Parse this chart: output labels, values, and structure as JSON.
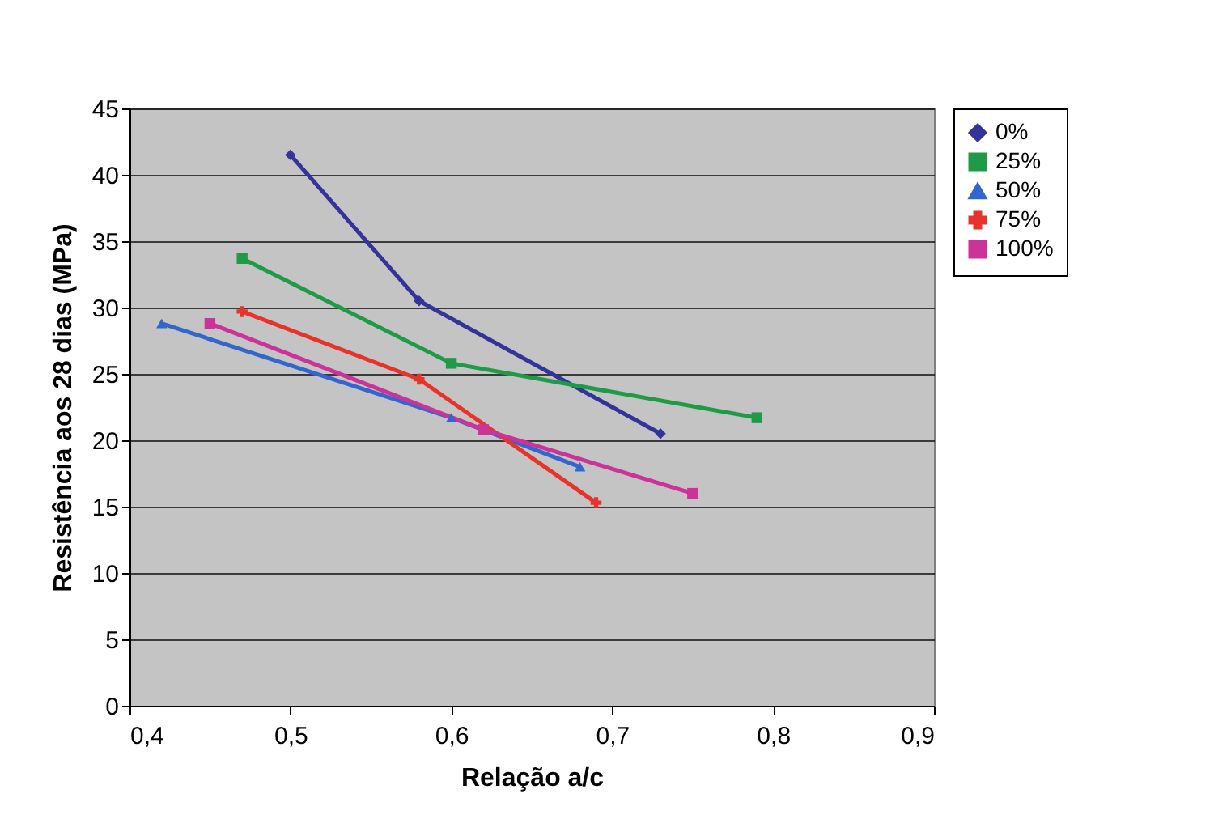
{
  "chart_data": {
    "type": "line",
    "xlabel": "Relação a/c",
    "ylabel": "Resistência aos 28 dias (MPa)",
    "xlim": [
      0.4,
      0.9
    ],
    "xticks": [
      {
        "value": 0.4,
        "label": "0,4"
      },
      {
        "value": 0.5,
        "label": "0,5"
      },
      {
        "value": 0.6,
        "label": "0,6"
      },
      {
        "value": 0.7,
        "label": "0,7"
      },
      {
        "value": 0.8,
        "label": "0,8"
      },
      {
        "value": 0.9,
        "label": "0,9"
      }
    ],
    "ylim": [
      0,
      45
    ],
    "yticks": [
      0,
      5,
      10,
      15,
      20,
      25,
      30,
      35,
      40,
      45
    ],
    "grid": "y",
    "legend": "right",
    "line_style": "solid",
    "series": [
      {
        "name": "0%",
        "color": "#333399",
        "marker": "diamond",
        "x": [
          0.5,
          0.58,
          0.73
        ],
        "values": [
          41.5,
          30.5,
          20.5
        ]
      },
      {
        "name": "25%",
        "color": "#1f9a46",
        "marker": "square",
        "x": [
          0.47,
          0.6,
          0.79
        ],
        "values": [
          33.7,
          25.8,
          21.7
        ]
      },
      {
        "name": "50%",
        "color": "#3366cc",
        "marker": "triangle",
        "x": [
          0.42,
          0.6,
          0.68
        ],
        "values": [
          28.8,
          21.7,
          18
        ]
      },
      {
        "name": "75%",
        "color": "#e8332a",
        "marker": "cross",
        "x": [
          0.47,
          0.58,
          0.69
        ],
        "values": [
          29.7,
          24.6,
          15.3
        ]
      },
      {
        "name": "100%",
        "color": "#cc3399",
        "marker": "square",
        "x": [
          0.45,
          0.62,
          0.75
        ],
        "values": [
          28.8,
          20.8,
          16
        ]
      }
    ]
  }
}
